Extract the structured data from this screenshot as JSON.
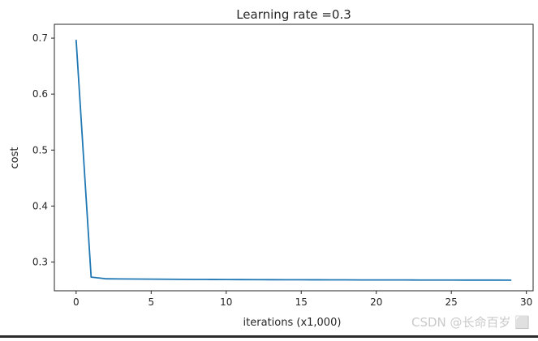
{
  "chart_data": {
    "type": "line",
    "title": "Learning rate =0.3",
    "xlabel": "iterations (x1,000)",
    "ylabel": "cost",
    "xlim": [
      -1.45,
      30.45
    ],
    "ylim": [
      0.2486,
      0.7247
    ],
    "x_ticks": [
      0,
      5,
      10,
      15,
      20,
      25,
      30
    ],
    "x_tick_labels": [
      "0",
      "5",
      "10",
      "15",
      "20",
      "25",
      "30"
    ],
    "y_ticks": [
      0.3,
      0.4,
      0.5,
      0.6,
      0.7
    ],
    "y_tick_labels": [
      "0.3",
      "0.4",
      "0.5",
      "0.6",
      "0.7"
    ],
    "grid": false,
    "series": [
      {
        "color": "#1f77b4",
        "x": [
          0,
          1,
          2,
          3,
          4,
          5,
          6,
          7,
          8,
          9,
          10,
          11,
          12,
          13,
          14,
          15,
          16,
          17,
          18,
          19,
          20,
          21,
          22,
          23,
          24,
          25,
          26,
          27,
          28,
          29
        ],
        "y": [
          0.697,
          0.273,
          0.27,
          0.2698,
          0.2696,
          0.2694,
          0.2692,
          0.269,
          0.2689,
          0.2688,
          0.2687,
          0.2686,
          0.2685,
          0.2684,
          0.2683,
          0.2683,
          0.2682,
          0.2681,
          0.2681,
          0.268,
          0.268,
          0.2679,
          0.2679,
          0.2678,
          0.2678,
          0.2678,
          0.2677,
          0.2677,
          0.2677,
          0.2676
        ]
      }
    ]
  },
  "watermark": "CSDN @长命百岁 ⬜"
}
